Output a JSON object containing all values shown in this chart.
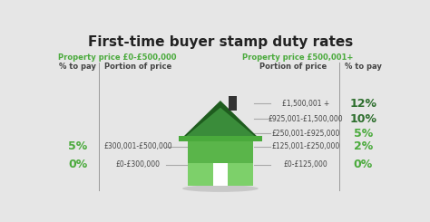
{
  "title": "First-time buyer stamp duty rates",
  "background_color": "#e6e6e6",
  "title_color": "#222222",
  "green_header_color": "#4aaa3c",
  "dark_green_color": "#2d6e2d",
  "dark_text_color": "#444444",
  "line_color": "#aaaaaa",
  "divider_color": "#999999",
  "left_section": {
    "header": "Property price £0-£500,000",
    "col1_label": "% to pay",
    "col2_label": "Portion of price",
    "rows": [
      {
        "pct": "5%",
        "portion": "£300,001-£500,000"
      },
      {
        "pct": "0%",
        "portion": "£0-£300,000"
      }
    ]
  },
  "right_section": {
    "header": "Property price £500,001+",
    "col1_label": "Portion of price",
    "col2_label": "% to pay",
    "rows": [
      {
        "portion": "£1,500,001 +",
        "pct": "12%",
        "pct_color": "#2d6e2d"
      },
      {
        "portion": "£925,001-£1,500,000",
        "pct": "10%",
        "pct_color": "#2d6e2d"
      },
      {
        "portion": "£250,001-£925,000",
        "pct": "5%",
        "pct_color": "#4aaa3c"
      },
      {
        "portion": "£125,001-£250,000",
        "pct": "2%",
        "pct_color": "#4aaa3c"
      },
      {
        "portion": "£0-£125,000",
        "pct": "0%",
        "pct_color": "#4aaa3c"
      }
    ]
  },
  "house": {
    "roof_outer_color": "#1e5c1e",
    "roof_inner_color": "#3a8c3a",
    "body_top_color": "#5ab54a",
    "body_bottom_color": "#7dd06a",
    "door_color": "#ffffff",
    "chimney_color": "#333333",
    "shadow_color": "#c8c8c8",
    "eave_color": "#4aaa3c"
  }
}
